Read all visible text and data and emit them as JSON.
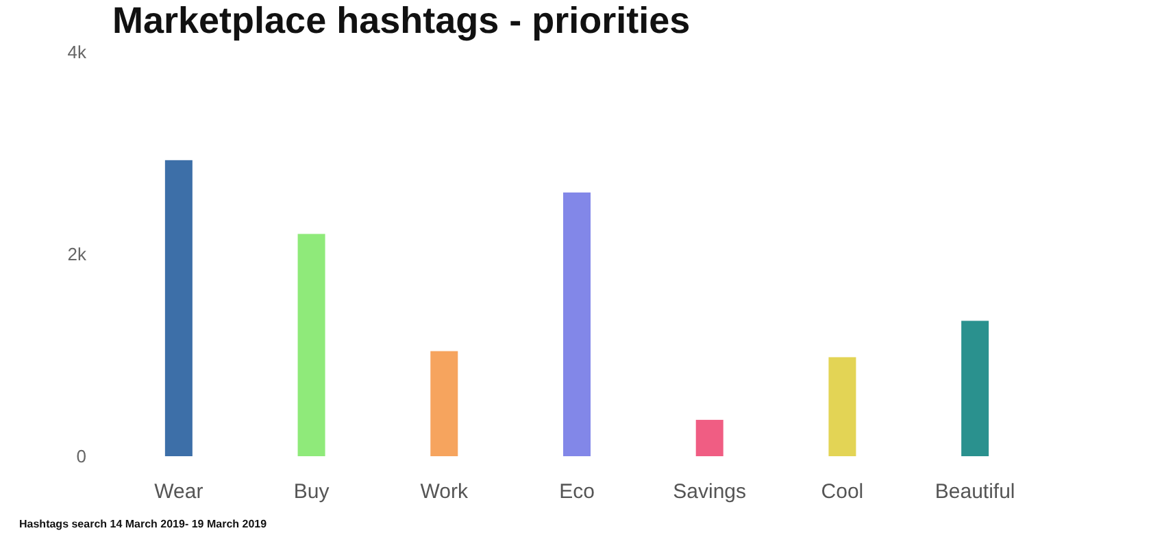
{
  "chart_data": {
    "type": "bar",
    "title": "Marketplace hashtags - priorities",
    "categories": [
      "Wear",
      "Buy",
      "Work",
      "Eco",
      "Savings",
      "Cool",
      "Beautiful"
    ],
    "values": [
      2930,
      2200,
      1040,
      2610,
      360,
      980,
      1340
    ],
    "colors": [
      "#3d6fa8",
      "#8fea7a",
      "#f6a45e",
      "#8287e8",
      "#f05d83",
      "#e3d455",
      "#2a918e"
    ],
    "ylim": [
      0,
      4000
    ],
    "yticks": [
      0,
      {
        "value": 2000,
        "label": "2k"
      },
      {
        "value": 4000,
        "label": "4k"
      }
    ],
    "annotations": [
      "Hashtags search 14 March 2019- 19 March 2019"
    ]
  }
}
